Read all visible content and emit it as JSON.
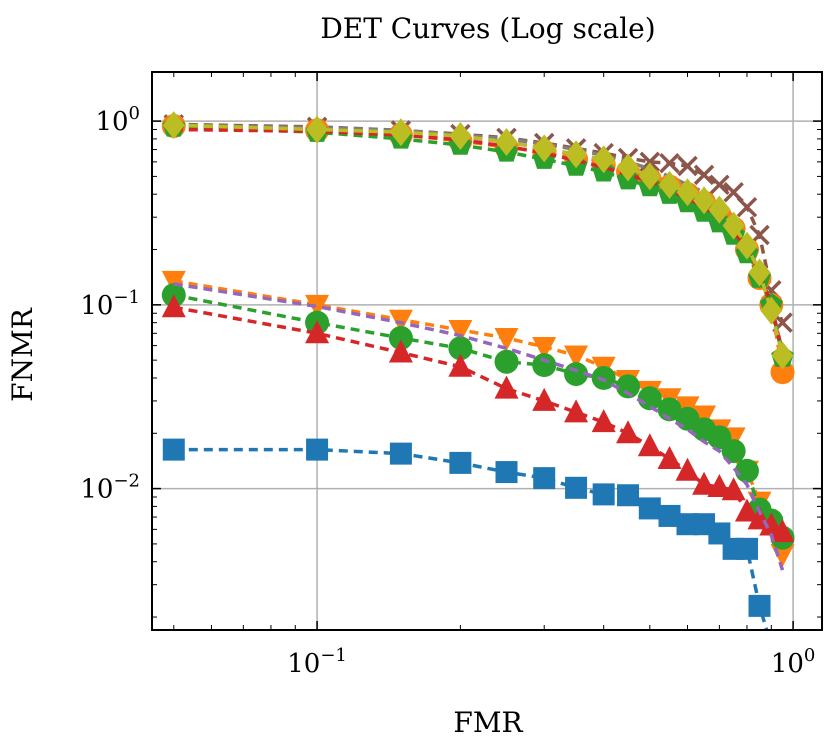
{
  "chart_data": {
    "type": "line",
    "title": "DET Curves (Log scale)",
    "xlabel": "FMR",
    "ylabel": "FNMR",
    "xscale": "log",
    "yscale": "log",
    "xlim": [
      0.045,
      1.15
    ],
    "ylim": [
      0.0017,
      1.85
    ],
    "grid": true,
    "x_ticks": [
      {
        "base": "10",
        "exp": "−1",
        "value": 0.1
      },
      {
        "base": "10",
        "exp": "0",
        "value": 1
      }
    ],
    "y_ticks": [
      {
        "base": "10",
        "exp": "−2",
        "value": 0.01
      },
      {
        "base": "10",
        "exp": "−1",
        "value": 0.1
      },
      {
        "base": "10",
        "exp": "0",
        "value": 1
      }
    ],
    "series": [
      {
        "color": "#1f77b4",
        "marker": "square",
        "points": [
          [
            0.05,
            0.0163
          ],
          [
            0.1,
            0.0163
          ],
          [
            0.15,
            0.0155
          ],
          [
            0.2,
            0.0138
          ],
          [
            0.25,
            0.0123
          ],
          [
            0.3,
            0.0114
          ],
          [
            0.35,
            0.0101
          ],
          [
            0.4,
            0.0093
          ],
          [
            0.45,
            0.0092
          ],
          [
            0.5,
            0.0078
          ],
          [
            0.55,
            0.0071
          ],
          [
            0.6,
            0.0064
          ],
          [
            0.65,
            0.0064
          ],
          [
            0.7,
            0.0057
          ],
          [
            0.75,
            0.0047
          ],
          [
            0.8,
            0.0047
          ],
          [
            0.85,
            0.0023
          ],
          [
            0.9,
            0.0014
          ]
        ]
      },
      {
        "color": "#ff7f0e",
        "marker": "triangle-down",
        "points": [
          [
            0.05,
            0.135
          ],
          [
            0.1,
            0.1
          ],
          [
            0.15,
            0.083
          ],
          [
            0.2,
            0.073
          ],
          [
            0.25,
            0.066
          ],
          [
            0.3,
            0.059
          ],
          [
            0.35,
            0.053
          ],
          [
            0.4,
            0.046
          ],
          [
            0.45,
            0.039
          ],
          [
            0.5,
            0.034
          ],
          [
            0.55,
            0.031
          ],
          [
            0.6,
            0.028
          ],
          [
            0.65,
            0.025
          ],
          [
            0.7,
            0.021
          ],
          [
            0.75,
            0.019
          ],
          [
            0.8,
            0.0125
          ],
          [
            0.85,
            0.0085
          ],
          [
            0.9,
            0.0062
          ],
          [
            0.95,
            0.0044
          ]
        ]
      },
      {
        "color": "#2ca02c",
        "marker": "circle",
        "points": [
          [
            0.05,
            0.113
          ],
          [
            0.1,
            0.08
          ],
          [
            0.15,
            0.066
          ],
          [
            0.2,
            0.058
          ],
          [
            0.25,
            0.049
          ],
          [
            0.3,
            0.047
          ],
          [
            0.35,
            0.042
          ],
          [
            0.4,
            0.04
          ],
          [
            0.45,
            0.036
          ],
          [
            0.5,
            0.031
          ],
          [
            0.55,
            0.027
          ],
          [
            0.6,
            0.024
          ],
          [
            0.65,
            0.021
          ],
          [
            0.7,
            0.019
          ],
          [
            0.75,
            0.016
          ],
          [
            0.8,
            0.0125
          ],
          [
            0.85,
            0.0077
          ],
          [
            0.9,
            0.0067
          ],
          [
            0.95,
            0.0054
          ]
        ]
      },
      {
        "color": "#d62728",
        "marker": "triangle-up",
        "points": [
          [
            0.05,
            0.097
          ],
          [
            0.1,
            0.07
          ],
          [
            0.15,
            0.055
          ],
          [
            0.2,
            0.046
          ],
          [
            0.25,
            0.035
          ],
          [
            0.3,
            0.03
          ],
          [
            0.35,
            0.026
          ],
          [
            0.4,
            0.023
          ],
          [
            0.45,
            0.02
          ],
          [
            0.5,
            0.017
          ],
          [
            0.55,
            0.0145
          ],
          [
            0.6,
            0.0125
          ],
          [
            0.65,
            0.0105
          ],
          [
            0.7,
            0.0102
          ],
          [
            0.75,
            0.0098
          ],
          [
            0.8,
            0.0075
          ],
          [
            0.85,
            0.0068
          ],
          [
            0.9,
            0.0063
          ],
          [
            0.95,
            0.0058
          ]
        ]
      },
      {
        "color": "#9467bd",
        "marker": "none",
        "points": [
          [
            0.05,
            0.13
          ],
          [
            0.1,
            0.098
          ],
          [
            0.15,
            0.08
          ],
          [
            0.2,
            0.068
          ],
          [
            0.25,
            0.058
          ],
          [
            0.3,
            0.05
          ],
          [
            0.35,
            0.044
          ],
          [
            0.4,
            0.039
          ],
          [
            0.45,
            0.033
          ],
          [
            0.5,
            0.028
          ],
          [
            0.55,
            0.024
          ],
          [
            0.6,
            0.021
          ],
          [
            0.65,
            0.018
          ],
          [
            0.7,
            0.016
          ],
          [
            0.75,
            0.013
          ],
          [
            0.8,
            0.0105
          ],
          [
            0.85,
            0.0075
          ],
          [
            0.9,
            0.0056
          ],
          [
            0.95,
            0.0036
          ]
        ]
      },
      {
        "color": "#8c564b",
        "marker": "x",
        "points": [
          [
            0.05,
            0.96
          ],
          [
            0.1,
            0.93
          ],
          [
            0.15,
            0.89
          ],
          [
            0.2,
            0.85
          ],
          [
            0.25,
            0.81
          ],
          [
            0.3,
            0.76
          ],
          [
            0.35,
            0.71
          ],
          [
            0.4,
            0.67
          ],
          [
            0.45,
            0.63
          ],
          [
            0.5,
            0.6
          ],
          [
            0.55,
            0.59
          ],
          [
            0.6,
            0.57
          ],
          [
            0.65,
            0.51
          ],
          [
            0.7,
            0.45
          ],
          [
            0.75,
            0.41
          ],
          [
            0.8,
            0.34
          ],
          [
            0.85,
            0.24
          ],
          [
            0.9,
            0.12
          ],
          [
            0.95,
            0.08
          ]
        ]
      },
      {
        "color": "#e377c2",
        "marker": "none",
        "points": [
          [
            0.05,
            0.94
          ],
          [
            0.1,
            0.91
          ],
          [
            0.15,
            0.87
          ],
          [
            0.2,
            0.82
          ],
          [
            0.25,
            0.77
          ],
          [
            0.3,
            0.71
          ],
          [
            0.35,
            0.65
          ],
          [
            0.4,
            0.6
          ],
          [
            0.45,
            0.54
          ],
          [
            0.5,
            0.5
          ],
          [
            0.55,
            0.46
          ],
          [
            0.6,
            0.43
          ],
          [
            0.65,
            0.39
          ],
          [
            0.7,
            0.34
          ],
          [
            0.75,
            0.28
          ],
          [
            0.8,
            0.22
          ],
          [
            0.85,
            0.15
          ],
          [
            0.9,
            0.1
          ],
          [
            0.95,
            0.055
          ]
        ]
      },
      {
        "color": "#7f7f7f",
        "marker": "none",
        "points": [
          [
            0.05,
            0.95
          ],
          [
            0.1,
            0.92
          ],
          [
            0.15,
            0.89
          ],
          [
            0.2,
            0.84
          ],
          [
            0.25,
            0.8
          ],
          [
            0.3,
            0.75
          ],
          [
            0.35,
            0.7
          ],
          [
            0.4,
            0.65
          ],
          [
            0.45,
            0.6
          ],
          [
            0.5,
            0.55
          ],
          [
            0.55,
            0.5
          ],
          [
            0.6,
            0.45
          ],
          [
            0.65,
            0.41
          ],
          [
            0.7,
            0.36
          ],
          [
            0.75,
            0.3
          ],
          [
            0.8,
            0.23
          ],
          [
            0.85,
            0.16
          ],
          [
            0.9,
            0.1
          ],
          [
            0.95,
            0.056
          ]
        ]
      },
      {
        "color": "#ff7f0e",
        "marker": "circle",
        "points": [
          [
            0.05,
            0.94
          ],
          [
            0.1,
            0.89
          ],
          [
            0.15,
            0.84
          ],
          [
            0.2,
            0.78
          ],
          [
            0.25,
            0.72
          ],
          [
            0.3,
            0.68
          ],
          [
            0.35,
            0.62
          ],
          [
            0.4,
            0.58
          ],
          [
            0.45,
            0.53
          ],
          [
            0.5,
            0.48
          ],
          [
            0.55,
            0.44
          ],
          [
            0.6,
            0.4
          ],
          [
            0.65,
            0.36
          ],
          [
            0.7,
            0.31
          ],
          [
            0.75,
            0.26
          ],
          [
            0.8,
            0.2
          ],
          [
            0.85,
            0.14
          ],
          [
            0.9,
            0.1
          ],
          [
            0.95,
            0.043
          ]
        ]
      },
      {
        "color": "#2ca02c",
        "marker": "pentagon",
        "points": [
          [
            0.05,
            0.93
          ],
          [
            0.1,
            0.87
          ],
          [
            0.15,
            0.8
          ],
          [
            0.2,
            0.74
          ],
          [
            0.25,
            0.68
          ],
          [
            0.3,
            0.62
          ],
          [
            0.35,
            0.57
          ],
          [
            0.4,
            0.53
          ],
          [
            0.45,
            0.48
          ],
          [
            0.5,
            0.44
          ],
          [
            0.55,
            0.4
          ],
          [
            0.6,
            0.36
          ],
          [
            0.65,
            0.32
          ],
          [
            0.7,
            0.28
          ],
          [
            0.75,
            0.24
          ],
          [
            0.8,
            0.19
          ],
          [
            0.85,
            0.14
          ],
          [
            0.9,
            0.1
          ],
          [
            0.95,
            0.052
          ]
        ]
      },
      {
        "color": "#d62728",
        "marker": "none",
        "points": [
          [
            0.05,
            0.9
          ],
          [
            0.1,
            0.88
          ],
          [
            0.15,
            0.84
          ],
          [
            0.2,
            0.79
          ],
          [
            0.25,
            0.73
          ],
          [
            0.3,
            0.67
          ],
          [
            0.35,
            0.61
          ],
          [
            0.4,
            0.56
          ],
          [
            0.45,
            0.51
          ],
          [
            0.5,
            0.47
          ],
          [
            0.55,
            0.42
          ],
          [
            0.6,
            0.38
          ],
          [
            0.65,
            0.34
          ],
          [
            0.7,
            0.3
          ],
          [
            0.75,
            0.25
          ],
          [
            0.8,
            0.2
          ],
          [
            0.85,
            0.15
          ],
          [
            0.9,
            0.1
          ],
          [
            0.95,
            0.054
          ]
        ]
      },
      {
        "color": "#bcbd22",
        "marker": "diamond",
        "points": [
          [
            0.05,
            0.95
          ],
          [
            0.1,
            0.9
          ],
          [
            0.15,
            0.87
          ],
          [
            0.2,
            0.83
          ],
          [
            0.25,
            0.77
          ],
          [
            0.3,
            0.71
          ],
          [
            0.35,
            0.66
          ],
          [
            0.4,
            0.62
          ],
          [
            0.45,
            0.56
          ],
          [
            0.5,
            0.5
          ],
          [
            0.55,
            0.45
          ],
          [
            0.6,
            0.41
          ],
          [
            0.65,
            0.37
          ],
          [
            0.7,
            0.33
          ],
          [
            0.75,
            0.27
          ],
          [
            0.8,
            0.21
          ],
          [
            0.85,
            0.15
          ],
          [
            0.9,
            0.093
          ],
          [
            0.95,
            0.053
          ]
        ]
      }
    ]
  }
}
